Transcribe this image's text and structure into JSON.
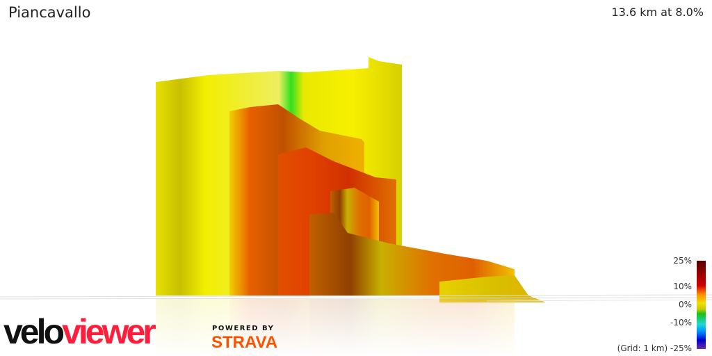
{
  "header": {
    "title": "Piancavallo",
    "stats": "13.6 km at 8.0%"
  },
  "legend": {
    "labels": [
      "25%",
      "10%",
      "0%",
      "-10%",
      "-25%"
    ],
    "grid": "(Grid: 1 km)",
    "colors": [
      "#5a0000",
      "#d00000",
      "#ff8c00",
      "#f0e000",
      "#18c018",
      "#20d8d8",
      "#0090ff",
      "#0000d0",
      "#7030a0"
    ]
  },
  "branding": {
    "logo_part1": "velo",
    "logo_part2": "viewer",
    "powered_by": "POWERED BY",
    "strava": "STRAVA",
    "logo_colors": {
      "velo": "#111111",
      "viewer": "#ff1f3d",
      "strava": "#fc5200"
    }
  }
}
